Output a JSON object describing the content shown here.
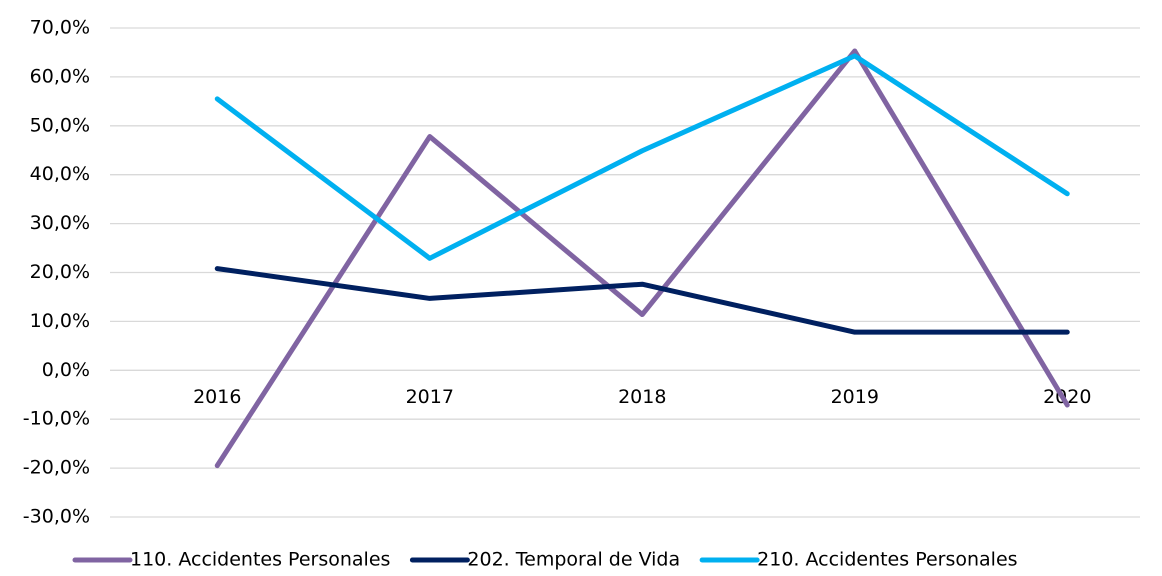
{
  "chart_data": {
    "type": "line",
    "categories": [
      "2016",
      "2017",
      "2018",
      "2019",
      "2020"
    ],
    "series": [
      {
        "name": "110. Accidentes Personales",
        "color": "#8064a2",
        "values": [
          -19.5,
          47.8,
          11.4,
          65.3,
          -7.1
        ]
      },
      {
        "name": "202. Temporal de Vida",
        "color": "#002060",
        "values": [
          20.8,
          14.7,
          17.6,
          7.8,
          7.8
        ]
      },
      {
        "name": "210. Accidentes Personales",
        "color": "#00b0f0",
        "values": [
          55.5,
          22.9,
          44.9,
          64.3,
          36.1
        ]
      }
    ],
    "ylim": [
      -30,
      70
    ],
    "yticks": [
      {
        "value": -30,
        "label": "-30,0%"
      },
      {
        "value": -20,
        "label": "-20,0%"
      },
      {
        "value": -10,
        "label": "-10,0%"
      },
      {
        "value": 0,
        "label": "0,0%"
      },
      {
        "value": 10,
        "label": "10,0%"
      },
      {
        "value": 20,
        "label": "20,0%"
      },
      {
        "value": 30,
        "label": "30,0%"
      },
      {
        "value": 40,
        "label": "40,0%"
      },
      {
        "value": 50,
        "label": "50,0%"
      },
      {
        "value": 60,
        "label": "60,0%"
      },
      {
        "value": 70,
        "label": "70,0%"
      }
    ],
    "grid": true,
    "legend": "bottom"
  }
}
